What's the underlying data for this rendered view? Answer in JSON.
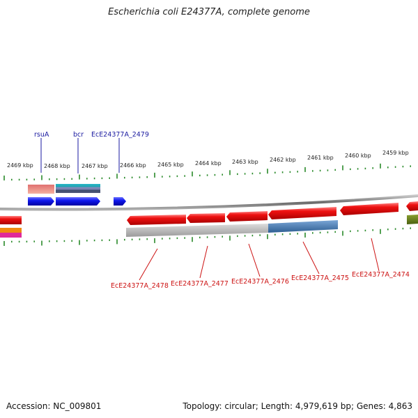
{
  "title": "Escherichia coli E24377A, complete genome",
  "footer": {
    "accession": "Accession: NC_009801",
    "stats": "Topology: circular; Length: 4,979,619 bp; Genes: 4,863"
  },
  "scale_labels": [
    "2469 kbp",
    "2468 kbp",
    "2467 kbp",
    "2466 kbp",
    "2465 kbp",
    "2464 kbp",
    "2463 kbp",
    "2462 kbp",
    "2461 kbp",
    "2460 kbp",
    "2459 kbp"
  ],
  "top_genes": [
    "rsuA",
    "bcr",
    "EcE24377A_2479"
  ],
  "bottom_genes": [
    "EcE24377A_2478",
    "EcE24377A_2477",
    "EcE24377A_2476",
    "EcE24377A_2475",
    "EcE24377A_2474"
  ],
  "colors": {
    "forward_gene": "#0a10e8",
    "reverse_gene": "#ee1111",
    "backbone": "#8a8a8a",
    "tick": "#2a8a2a",
    "top_label": "#1a1aa0",
    "bottom_label": "#cc1111"
  }
}
